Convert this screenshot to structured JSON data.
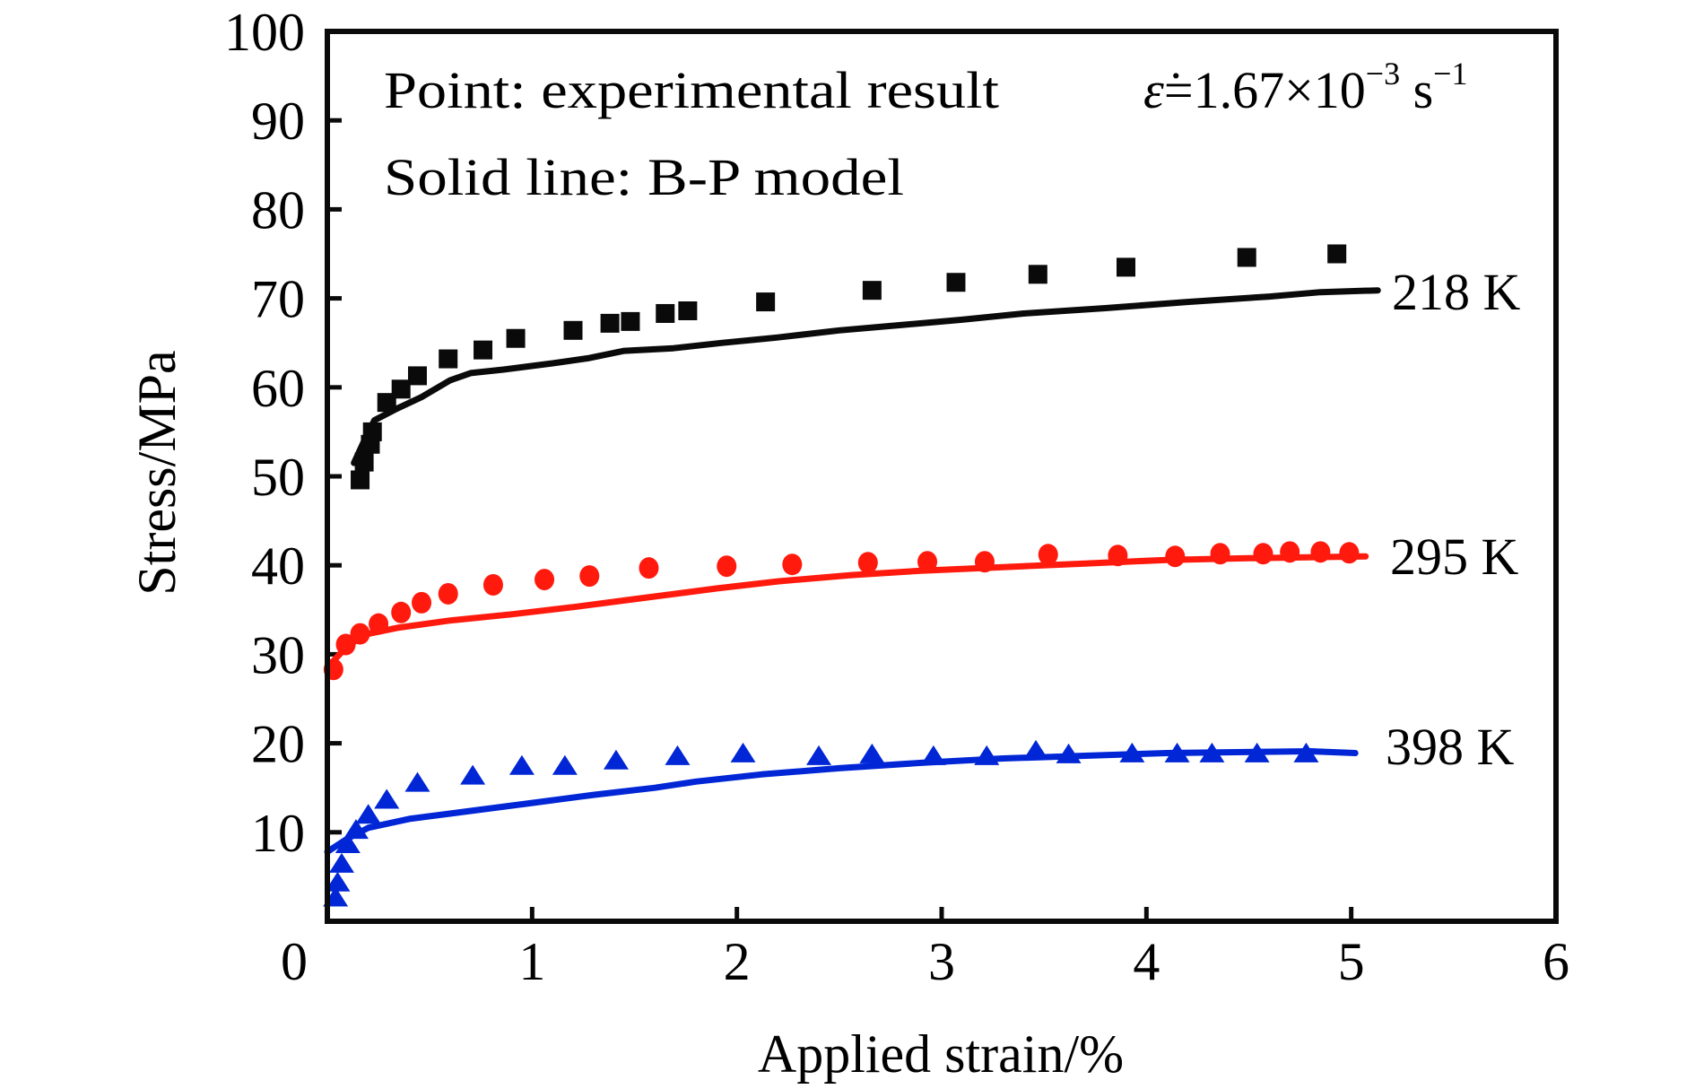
{
  "chart_data": {
    "type": "scatter",
    "title": "",
    "xlabel": "Applied strain/%",
    "ylabel": "Stress/MPa",
    "xlim": [
      0,
      6
    ],
    "ylim": [
      0,
      100
    ],
    "xticks": [
      0,
      1,
      2,
      3,
      4,
      5,
      6
    ],
    "yticks": [
      10,
      20,
      30,
      40,
      50,
      60,
      70,
      80,
      90,
      100
    ],
    "origin_label": "0",
    "grid": false,
    "annotations": {
      "points_note": "Point: experimental result",
      "line_note": "Solid line: B-P model",
      "strain_rate_symbol": "ε̇",
      "strain_rate_value": "=1.67×10",
      "strain_rate_exp": "−3",
      "strain_rate_unit": " s",
      "strain_rate_unit_exp": "−1"
    },
    "series": [
      {
        "name": "218 K",
        "color": "#0a0a0a",
        "marker": "square",
        "experimental": [
          [
            0.16,
            49.6
          ],
          [
            0.18,
            51.6
          ],
          [
            0.21,
            53.6
          ],
          [
            0.22,
            55.0
          ],
          [
            0.29,
            58.3
          ],
          [
            0.36,
            59.8
          ],
          [
            0.44,
            61.3
          ],
          [
            0.59,
            63.2
          ],
          [
            0.76,
            64.2
          ],
          [
            0.92,
            65.5
          ],
          [
            1.2,
            66.4
          ],
          [
            1.38,
            67.2
          ],
          [
            1.48,
            67.4
          ],
          [
            1.65,
            68.3
          ],
          [
            1.76,
            68.6
          ],
          [
            2.14,
            69.6
          ],
          [
            2.66,
            70.9
          ],
          [
            3.07,
            71.8
          ],
          [
            3.47,
            72.7
          ],
          [
            3.9,
            73.5
          ],
          [
            4.49,
            74.6
          ],
          [
            4.93,
            75.0
          ]
        ],
        "model": [
          [
            0.13,
            51.5
          ],
          [
            0.18,
            54.0
          ],
          [
            0.23,
            56.3
          ],
          [
            0.33,
            57.5
          ],
          [
            0.46,
            58.9
          ],
          [
            0.6,
            60.8
          ],
          [
            0.7,
            61.6
          ],
          [
            0.86,
            62.0
          ],
          [
            1.1,
            62.7
          ],
          [
            1.28,
            63.3
          ],
          [
            1.45,
            64.1
          ],
          [
            1.69,
            64.4
          ],
          [
            1.93,
            65.0
          ],
          [
            2.2,
            65.6
          ],
          [
            2.5,
            66.4
          ],
          [
            2.8,
            67.0
          ],
          [
            3.1,
            67.6
          ],
          [
            3.4,
            68.3
          ],
          [
            3.8,
            68.9
          ],
          [
            4.2,
            69.6
          ],
          [
            4.6,
            70.2
          ],
          [
            4.85,
            70.7
          ],
          [
            5.13,
            70.9
          ]
        ]
      },
      {
        "name": "295 K",
        "color": "#ff1a0d",
        "marker": "circle",
        "experimental": [
          [
            0.03,
            28.3
          ],
          [
            0.09,
            31.1
          ],
          [
            0.16,
            32.3
          ],
          [
            0.25,
            33.4
          ],
          [
            0.36,
            34.7
          ],
          [
            0.46,
            35.8
          ],
          [
            0.59,
            36.8
          ],
          [
            0.81,
            37.8
          ],
          [
            1.06,
            38.4
          ],
          [
            1.28,
            38.8
          ],
          [
            1.57,
            39.7
          ],
          [
            1.95,
            39.9
          ],
          [
            2.27,
            40.1
          ],
          [
            2.64,
            40.3
          ],
          [
            2.93,
            40.4
          ],
          [
            3.21,
            40.4
          ],
          [
            3.52,
            41.2
          ],
          [
            3.86,
            41.1
          ],
          [
            4.14,
            41.0
          ],
          [
            4.36,
            41.3
          ],
          [
            4.57,
            41.3
          ],
          [
            4.7,
            41.5
          ],
          [
            4.85,
            41.5
          ],
          [
            4.99,
            41.4
          ]
        ],
        "model": [
          [
            0.02,
            29.0
          ],
          [
            0.1,
            31.0
          ],
          [
            0.2,
            32.3
          ],
          [
            0.35,
            33.0
          ],
          [
            0.6,
            33.8
          ],
          [
            0.9,
            34.5
          ],
          [
            1.2,
            35.3
          ],
          [
            1.5,
            36.2
          ],
          [
            1.9,
            37.4
          ],
          [
            2.2,
            38.2
          ],
          [
            2.56,
            38.9
          ],
          [
            2.9,
            39.4
          ],
          [
            3.3,
            39.8
          ],
          [
            3.7,
            40.2
          ],
          [
            4.1,
            40.6
          ],
          [
            4.5,
            40.8
          ],
          [
            5.07,
            41.0
          ]
        ]
      },
      {
        "name": "398 K",
        "color": "#0026d6",
        "marker": "triangle",
        "experimental": [
          [
            0.04,
            2.5
          ],
          [
            0.05,
            4.2
          ],
          [
            0.07,
            6.3
          ],
          [
            0.1,
            8.5
          ],
          [
            0.14,
            10.1
          ],
          [
            0.2,
            11.8
          ],
          [
            0.29,
            13.5
          ],
          [
            0.44,
            15.4
          ],
          [
            0.71,
            16.2
          ],
          [
            0.95,
            17.3
          ],
          [
            1.16,
            17.3
          ],
          [
            1.41,
            17.9
          ],
          [
            1.71,
            18.4
          ],
          [
            2.03,
            18.7
          ],
          [
            2.4,
            18.4
          ],
          [
            2.66,
            18.6
          ],
          [
            2.96,
            18.4
          ],
          [
            3.22,
            18.4
          ],
          [
            3.46,
            19.0
          ],
          [
            3.62,
            18.6
          ],
          [
            3.93,
            18.7
          ],
          [
            4.15,
            18.7
          ],
          [
            4.32,
            18.7
          ],
          [
            4.54,
            18.7
          ],
          [
            4.78,
            18.7
          ]
        ],
        "model": [
          [
            0.0,
            7.8
          ],
          [
            0.1,
            9.3
          ],
          [
            0.2,
            10.5
          ],
          [
            0.4,
            11.5
          ],
          [
            0.7,
            12.4
          ],
          [
            1.0,
            13.3
          ],
          [
            1.3,
            14.2
          ],
          [
            1.6,
            15.0
          ],
          [
            1.8,
            15.7
          ],
          [
            2.12,
            16.5
          ],
          [
            2.5,
            17.2
          ],
          [
            2.9,
            17.8
          ],
          [
            3.3,
            18.3
          ],
          [
            3.7,
            18.6
          ],
          [
            4.1,
            18.9
          ],
          [
            4.8,
            19.1
          ],
          [
            5.02,
            18.9
          ]
        ]
      }
    ]
  }
}
